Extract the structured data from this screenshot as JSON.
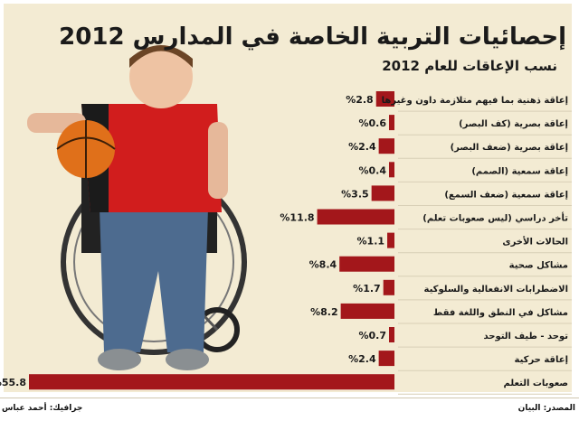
{
  "header": {
    "title": "إحصائيات التربية الخاصة في المدارس 2012",
    "subtitle": "نسب الإعاقات للعام 2012"
  },
  "footer": {
    "credit": "جرافيك: أحمد عباس",
    "source": "المصدر: البيان"
  },
  "colors": {
    "bar": "#a3171b",
    "panel": "#f3ebd3",
    "text": "#1a1a1a"
  },
  "chart_data": {
    "type": "bar",
    "orientation": "horizontal",
    "value_suffix": "%",
    "categories": [
      "إعاقة ذهنية بما فيهم متلازمة داون وغيرها",
      "إعاقة بصرية (كف البصر)",
      "إعاقة بصرية (ضعف البصر)",
      "إعاقة سمعية (الصمم)",
      "إعاقة سمعية (ضعف السمع)",
      "تأخر دراسي (ليس صعوبات تعلم)",
      "الحالات الأخرى",
      "مشاكل صحية",
      "الاضطرابات الانفعالية والسلوكية",
      "مشاكل في النطق واللغة فقط",
      "توحد - طيف التوحد",
      "إعاقة حركية",
      "صعوبات التعلم"
    ],
    "values": [
      2.8,
      0.6,
      2.4,
      0.4,
      3.5,
      11.8,
      1.1,
      8.4,
      1.7,
      8.2,
      0.7,
      2.4,
      55.8
    ]
  }
}
